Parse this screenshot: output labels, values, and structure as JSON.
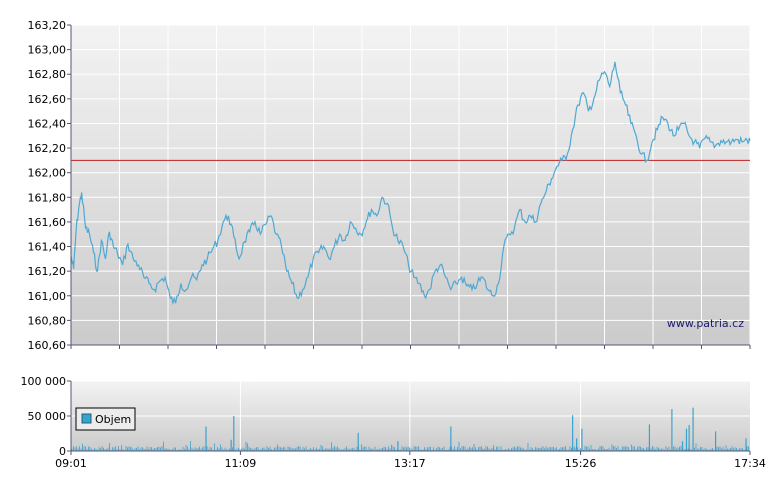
{
  "chart_data": [
    {
      "type": "line",
      "title": "",
      "xlabel": "",
      "ylabel": "",
      "x_ticks": [
        "09:01",
        "11:09",
        "13:17",
        "15:26",
        "17:34"
      ],
      "y_ticks": [
        "160,60",
        "160,80",
        "161,00",
        "161,20",
        "161,40",
        "161,60",
        "161,80",
        "162,00",
        "162,20",
        "162,40",
        "162,60",
        "162,80",
        "163,00",
        "163,20"
      ],
      "ylim": [
        160.6,
        163.2
      ],
      "reference_line": 162.1,
      "grid": true,
      "watermark": "www.patria.cz",
      "series": [
        {
          "x": [
            "09:01",
            "09:03",
            "09:05",
            "09:07",
            "09:09",
            "09:12",
            "09:15",
            "09:18",
            "09:21",
            "09:24",
            "09:27",
            "09:30",
            "09:33",
            "09:36",
            "09:40",
            "09:44",
            "09:48",
            "09:52",
            "09:56",
            "10:00",
            "10:04",
            "10:08",
            "10:12",
            "10:16",
            "10:20",
            "10:24",
            "10:28",
            "10:32",
            "10:36",
            "10:40",
            "10:44",
            "10:48",
            "10:52",
            "10:56",
            "11:00",
            "11:04",
            "11:08",
            "11:12",
            "11:16",
            "11:20",
            "11:24",
            "11:28",
            "11:32",
            "11:36",
            "11:40",
            "11:44",
            "11:48",
            "11:52",
            "11:56",
            "12:00",
            "12:04",
            "12:08",
            "12:12",
            "12:16",
            "12:20",
            "12:24",
            "12:28",
            "12:32",
            "12:36",
            "12:40",
            "12:44",
            "12:48",
            "12:52",
            "12:56",
            "13:00",
            "13:04",
            "13:08",
            "13:12",
            "13:16",
            "13:20",
            "13:24",
            "13:28",
            "13:32",
            "13:36",
            "13:40",
            "13:44",
            "13:48",
            "13:52",
            "13:56",
            "14:00",
            "14:04",
            "14:08",
            "14:12",
            "14:16",
            "14:20",
            "14:24",
            "14:28",
            "14:32",
            "14:36",
            "14:40",
            "14:44",
            "14:48",
            "14:52",
            "14:56",
            "15:00",
            "15:04",
            "15:08",
            "15:12",
            "15:16",
            "15:20",
            "15:24",
            "15:28",
            "15:32",
            "15:36",
            "15:40",
            "15:44",
            "15:48",
            "15:52",
            "15:56",
            "16:00",
            "16:04",
            "16:08",
            "16:12",
            "16:16",
            "16:20",
            "16:24",
            "16:28",
            "16:32",
            "16:36",
            "16:40",
            "16:44",
            "16:48",
            "16:52",
            "16:56",
            "17:00",
            "17:04",
            "17:08",
            "17:12",
            "17:16",
            "17:20",
            "17:24",
            "17:28",
            "17:32",
            "17:34"
          ],
          "values": [
            161.32,
            161.22,
            161.55,
            161.72,
            161.84,
            161.55,
            161.5,
            161.35,
            161.2,
            161.45,
            161.3,
            161.52,
            161.4,
            161.35,
            161.25,
            161.42,
            161.3,
            161.25,
            161.15,
            161.1,
            161.05,
            161.12,
            161.15,
            160.98,
            160.94,
            161.1,
            161.05,
            161.15,
            161.13,
            161.25,
            161.3,
            161.38,
            161.45,
            161.6,
            161.65,
            161.48,
            161.3,
            161.44,
            161.52,
            161.6,
            161.5,
            161.58,
            161.65,
            161.5,
            161.4,
            161.2,
            161.1,
            160.98,
            161.05,
            161.15,
            161.3,
            161.35,
            161.4,
            161.3,
            161.4,
            161.5,
            161.45,
            161.6,
            161.55,
            161.5,
            161.6,
            161.7,
            161.65,
            161.8,
            161.75,
            161.55,
            161.45,
            161.4,
            161.25,
            161.15,
            161.1,
            161.0,
            161.05,
            161.2,
            161.25,
            161.15,
            161.05,
            161.1,
            161.15,
            161.08,
            161.05,
            161.1,
            161.15,
            161.05,
            161.0,
            161.1,
            161.4,
            161.5,
            161.55,
            161.7,
            161.6,
            161.65,
            161.6,
            161.75,
            161.85,
            161.95,
            162.05,
            162.1,
            162.15,
            162.35,
            162.55,
            162.65,
            162.5,
            162.6,
            162.75,
            162.82,
            162.7,
            162.9,
            162.65,
            162.55,
            162.4,
            162.3,
            162.15,
            162.1,
            162.25,
            162.35,
            162.45,
            162.4,
            162.3,
            162.35,
            162.4,
            162.3,
            162.25,
            162.2,
            162.28,
            162.25,
            162.22,
            162.26,
            162.25,
            162.25,
            162.27,
            162.25,
            162.26,
            162.26
          ]
        }
      ]
    },
    {
      "type": "bar",
      "title": "",
      "x_ticks": [
        "09:01",
        "11:09",
        "13:17",
        "15:26",
        "17:34"
      ],
      "y_ticks": [
        "0",
        "50 000",
        "100 000"
      ],
      "ylim": [
        0,
        100000
      ],
      "legend": "Objem",
      "legend_position": "left",
      "grid": true,
      "series": [
        {
          "name": "Objem",
          "x": [
            "10:43",
            "11:02",
            "11:04",
            "12:38",
            "13:08",
            "13:48",
            "15:20",
            "15:23",
            "15:27",
            "16:18",
            "16:35",
            "16:43",
            "16:46",
            "16:48",
            "16:51",
            "17:08",
            "17:31"
          ],
          "values": [
            35000,
            16000,
            50000,
            26000,
            14000,
            35000,
            51000,
            18000,
            32000,
            38000,
            60000,
            14000,
            32000,
            37000,
            62000,
            28000,
            18000
          ]
        }
      ]
    }
  ],
  "colors": {
    "price_line": "#4fa8d2",
    "reference_line": "#c21f1f",
    "volume_bars": "#3aa2cf",
    "plot_top": "#f3f3f3",
    "plot_bottom": "#cccccc",
    "grid": "#ffffff",
    "frame": "#555577"
  }
}
